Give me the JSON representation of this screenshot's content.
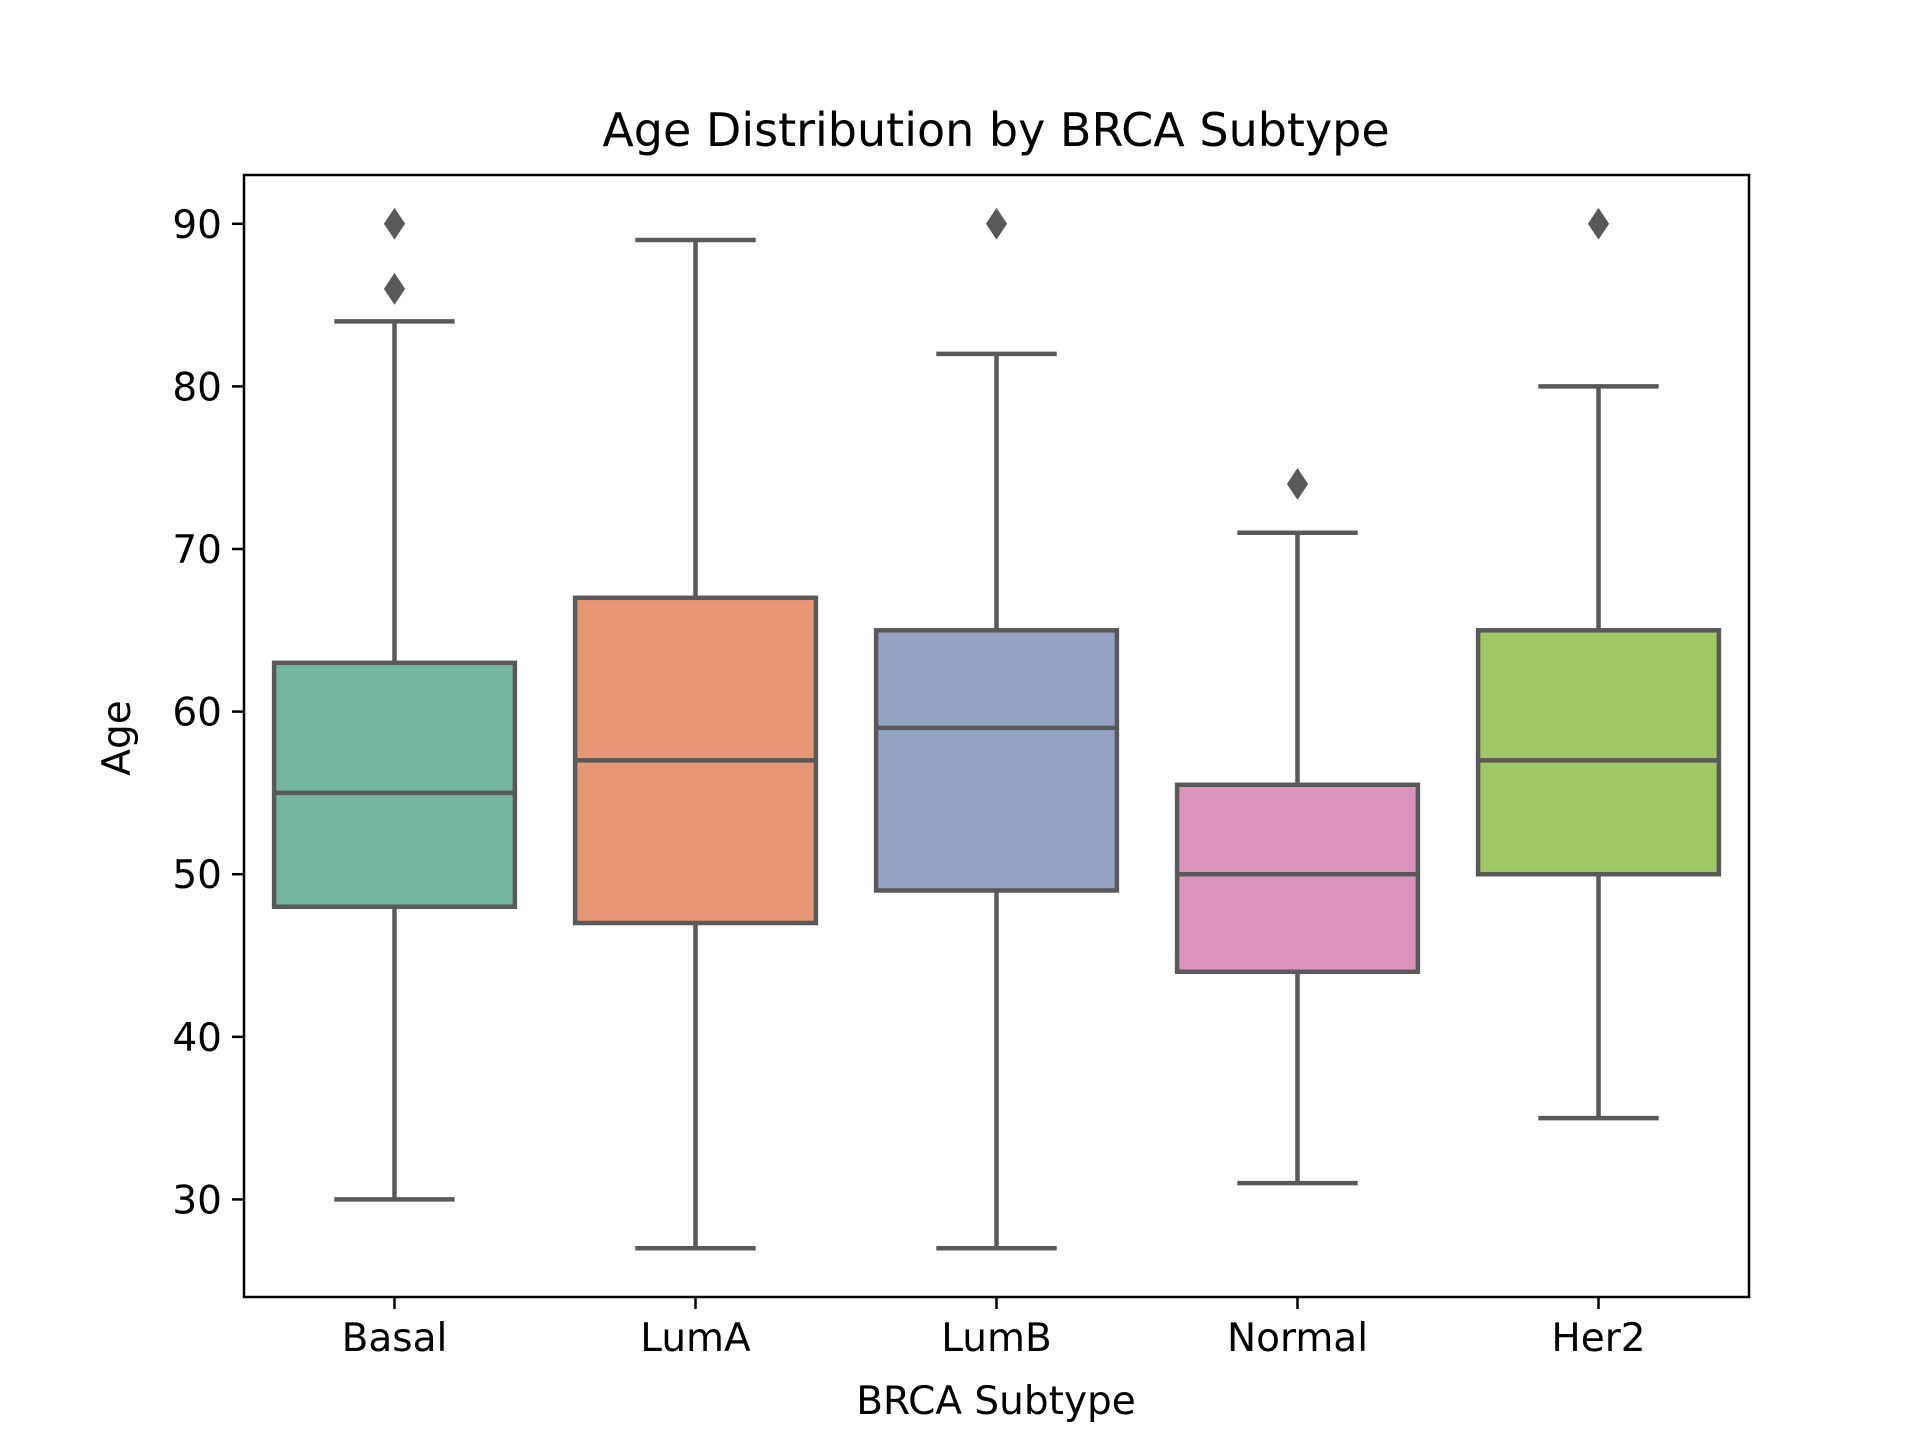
{
  "chart_data": {
    "type": "box",
    "title": "Age Distribution by BRCA Subtype",
    "xlabel": "BRCA Subtype",
    "ylabel": "Age",
    "ylim": [
      24,
      93
    ],
    "yticks": [
      30,
      40,
      50,
      60,
      70,
      80,
      90
    ],
    "grid": false,
    "categories": [
      "Basal",
      "LumA",
      "LumB",
      "Normal",
      "Her2"
    ],
    "boxes": [
      {
        "category": "Basal",
        "whisker_low": 30,
        "q1": 48,
        "median": 55,
        "q3": 63,
        "whisker_high": 84,
        "outliers": [
          86,
          90
        ],
        "color": "#73b69f"
      },
      {
        "category": "LumA",
        "whisker_low": 27,
        "q1": 47,
        "median": 57,
        "q3": 67,
        "whisker_high": 89,
        "outliers": [],
        "color": "#e99675"
      },
      {
        "category": "LumB",
        "whisker_low": 27,
        "q1": 49,
        "median": 59,
        "q3": 65,
        "whisker_high": 82,
        "outliers": [
          90
        ],
        "color": "#94a3c3"
      },
      {
        "category": "Normal",
        "whisker_low": 31,
        "q1": 44,
        "median": 50,
        "q3": 55.5,
        "whisker_high": 71,
        "outliers": [
          74
        ],
        "color": "#dc94bf"
      },
      {
        "category": "Her2",
        "whisker_low": 35,
        "q1": 50,
        "median": 57,
        "q3": 65,
        "whisker_high": 80,
        "outliers": [
          90
        ],
        "color": "#a1c866"
      }
    ],
    "line_color": "#595959"
  }
}
